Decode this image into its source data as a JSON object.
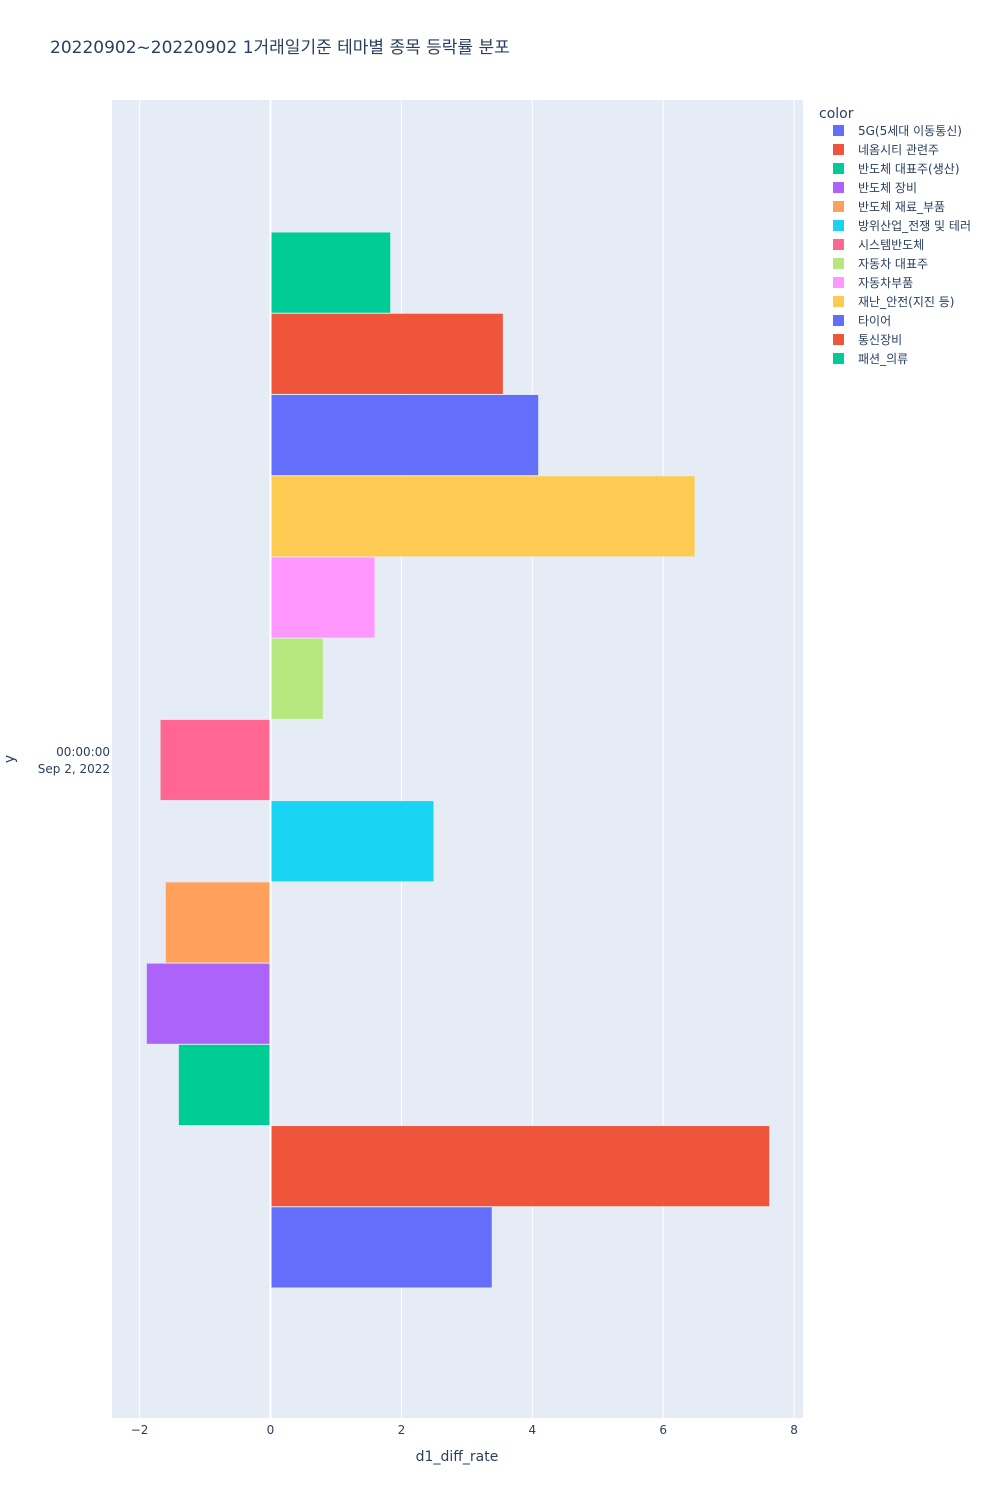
{
  "chart_data": {
    "type": "bar",
    "orientation": "horizontal",
    "barmode": "group",
    "title": "20220902~20220902 1거래일기준 테마별 종목 등락률 분포",
    "xlabel": "d1_diff_rate",
    "ylabel": "y",
    "xlim": [
      -2.4,
      8.15
    ],
    "x_ticks": [
      -2,
      0,
      2,
      4,
      6,
      8
    ],
    "x_tick_labels": [
      "−2",
      "0",
      "2",
      "4",
      "6",
      "8"
    ],
    "y_category": [
      "00:00:00",
      "Sep 2, 2022"
    ],
    "grid": true,
    "legend_title": "color",
    "legend_position": "right",
    "series": [
      {
        "name": "5G(5세대 이동통신)",
        "color": "#636efa",
        "value": 3.38
      },
      {
        "name": "네옴시티 관련주",
        "color": "#EF553B",
        "value": 7.62
      },
      {
        "name": "반도체 대표주(생산)",
        "color": "#00cc96",
        "value": -1.4
      },
      {
        "name": "반도체 장비",
        "color": "#ab63fa",
        "value": -1.89
      },
      {
        "name": "반도체 재료_부품",
        "color": "#FFA15A",
        "value": -1.6
      },
      {
        "name": "방위산업_전쟁 및 테러",
        "color": "#19d3f3",
        "value": 2.49
      },
      {
        "name": "시스템반도체",
        "color": "#FF6692",
        "value": -1.68
      },
      {
        "name": "자동차 대표주",
        "color": "#B6E880",
        "value": 0.8
      },
      {
        "name": "자동차부품",
        "color": "#FF97FF",
        "value": 1.59
      },
      {
        "name": "재난_안전(지진 등)",
        "color": "#FECB52",
        "value": 6.48
      },
      {
        "name": "타이어",
        "color": "#636efa",
        "value": 4.09
      },
      {
        "name": "통신장비",
        "color": "#EF553B",
        "value": 3.55
      },
      {
        "name": "패션_의류",
        "color": "#00cc96",
        "value": 1.83
      }
    ]
  }
}
